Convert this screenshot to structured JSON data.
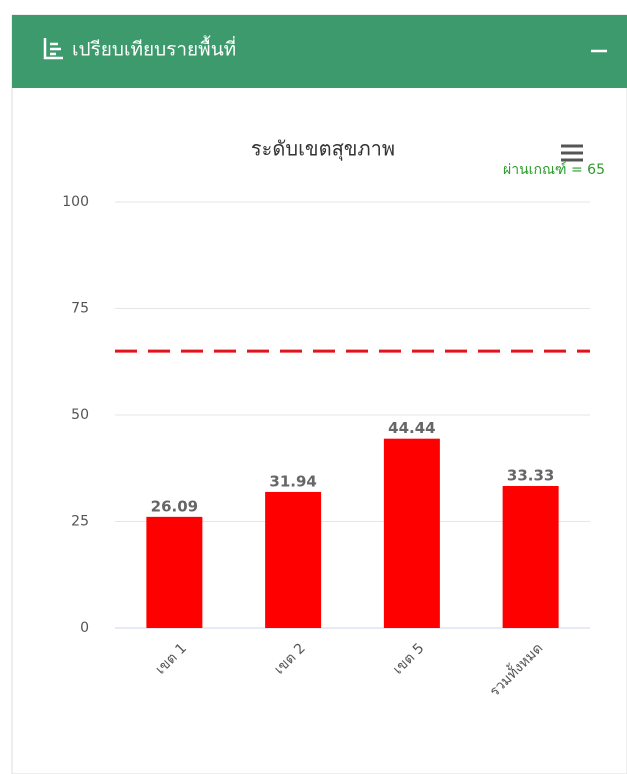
{
  "panel": {
    "title": "เปรียบเทียบรายพื้นที่"
  },
  "chart_data": {
    "type": "bar",
    "title": "ระดับเขตสุขภาพ",
    "categories": [
      "เขต 1",
      "เขต 2",
      "เขต 5",
      "รวมทั้งหมด"
    ],
    "values": [
      26.09,
      31.94,
      44.44,
      33.33
    ],
    "color": "#ff0000",
    "ylim": [
      0,
      100
    ],
    "yticks": [
      0,
      25,
      50,
      75,
      100
    ],
    "grid": true,
    "threshold": {
      "value": 65,
      "label": "ผ่านเกณฑ์ = 65",
      "color": "#e0141e"
    }
  }
}
